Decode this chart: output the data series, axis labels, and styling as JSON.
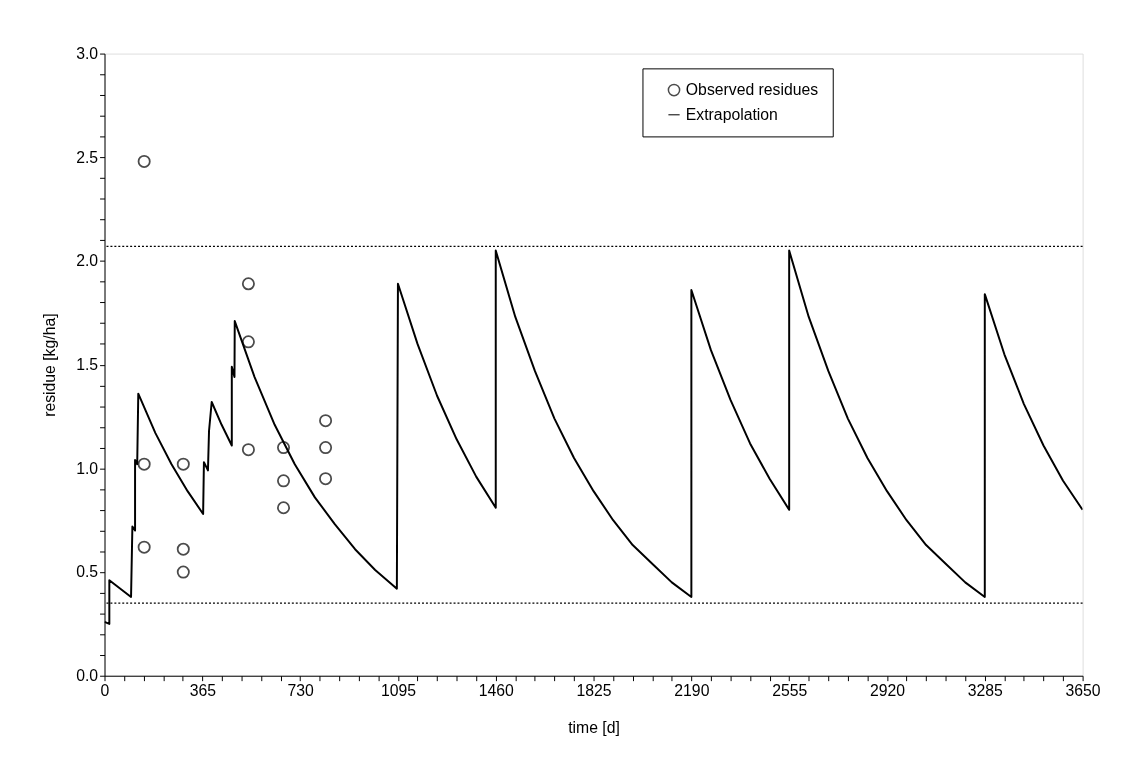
{
  "chart_data": {
    "type": "scatter",
    "xlabel": "time [d]",
    "ylabel": "residue [kg/ha]",
    "xlim": [
      0,
      3650
    ],
    "ylim": [
      0,
      3.0
    ],
    "xticks": [
      0,
      {
        "value": 73,
        "label": null
      },
      {
        "value": 146,
        "label": null
      },
      {
        "value": 219,
        "label": null
      },
      {
        "value": 292,
        "label": null
      },
      365,
      {
        "value": 438,
        "label": null
      },
      {
        "value": 511,
        "label": null
      },
      {
        "value": 584,
        "label": null
      },
      {
        "value": 657,
        "label": null
      },
      730,
      {
        "value": 803,
        "label": null
      },
      {
        "value": 876,
        "label": null
      },
      {
        "value": 949,
        "label": null
      },
      {
        "value": 1022,
        "label": null
      },
      1095,
      {
        "value": 1168,
        "label": null
      },
      {
        "value": 1241,
        "label": null
      },
      {
        "value": 1314,
        "label": null
      },
      {
        "value": 1387,
        "label": null
      },
      1460,
      {
        "value": 1533,
        "label": null
      },
      {
        "value": 1606,
        "label": null
      },
      {
        "value": 1679,
        "label": null
      },
      {
        "value": 1752,
        "label": null
      },
      1825,
      {
        "value": 1898,
        "label": null
      },
      {
        "value": 1971,
        "label": null
      },
      {
        "value": 2044,
        "label": null
      },
      {
        "value": 2117,
        "label": null
      },
      2190,
      {
        "value": 2263,
        "label": null
      },
      {
        "value": 2336,
        "label": null
      },
      {
        "value": 2409,
        "label": null
      },
      {
        "value": 2482,
        "label": null
      },
      2555,
      {
        "value": 2628,
        "label": null
      },
      {
        "value": 2701,
        "label": null
      },
      {
        "value": 2774,
        "label": null
      },
      {
        "value": 2847,
        "label": null
      },
      2920,
      {
        "value": 2993,
        "label": null
      },
      {
        "value": 3066,
        "label": null
      },
      {
        "value": 3139,
        "label": null
      },
      {
        "value": 3212,
        "label": null
      },
      3285,
      {
        "value": 3358,
        "label": null
      },
      {
        "value": 3431,
        "label": null
      },
      {
        "value": 3504,
        "label": null
      },
      {
        "value": 3577,
        "label": null
      },
      3650
    ],
    "yticks": [
      {
        "value": 0,
        "label": "0.0"
      },
      {
        "value": 0.1,
        "label": null
      },
      {
        "value": 0.2,
        "label": null
      },
      {
        "value": 0.3,
        "label": null
      },
      {
        "value": 0.4,
        "label": null
      },
      0.5,
      {
        "value": 0.6,
        "label": null
      },
      {
        "value": 0.7,
        "label": null
      },
      {
        "value": 0.8,
        "label": null
      },
      {
        "value": 0.9,
        "label": null
      },
      {
        "value": 1,
        "label": "1.0"
      },
      {
        "value": 1.1,
        "label": null
      },
      {
        "value": 1.2,
        "label": null
      },
      {
        "value": 1.3,
        "label": null
      },
      {
        "value": 1.4,
        "label": null
      },
      1.5,
      {
        "value": 1.6,
        "label": null
      },
      {
        "value": 1.7,
        "label": null
      },
      {
        "value": 1.8,
        "label": null
      },
      {
        "value": 1.9,
        "label": null
      },
      {
        "value": 2,
        "label": "2.0"
      },
      {
        "value": 2.1,
        "label": null
      },
      {
        "value": 2.2,
        "label": null
      },
      {
        "value": 2.3,
        "label": null
      },
      {
        "value": 2.4,
        "label": null
      },
      2.5,
      {
        "value": 2.6,
        "label": null
      },
      {
        "value": 2.7,
        "label": null
      },
      {
        "value": 2.8,
        "label": null
      },
      {
        "value": 2.9,
        "label": null
      },
      {
        "value": 3,
        "label": "3.0"
      }
    ],
    "grid": false,
    "legend": "top right",
    "ref_lines": [
      {
        "axis": "y",
        "value": 2.07,
        "label": null,
        "color": "#000000",
        "line_style": "dotted"
      },
      {
        "axis": "y",
        "value": 0.35,
        "label": null,
        "color": "#000000",
        "line_style": "dotted"
      }
    ],
    "series": [
      {
        "name": "Observed residues",
        "type": "scatter",
        "marker": "circle",
        "color": "#000000",
        "x": [
          148,
          148,
          148,
          294,
          294,
          294,
          537,
          537,
          537,
          668,
          668,
          668,
          825,
          825,
          825
        ],
        "values": [
          2.48,
          1.02,
          0.62,
          1.02,
          0.61,
          0.5,
          1.89,
          1.61,
          1.09,
          1.1,
          0.94,
          0.81,
          1.23,
          1.1,
          0.95
        ]
      },
      {
        "name": "Extrapolation",
        "type": "line",
        "line_style": "solid",
        "color": "#000000",
        "x": [
          0,
          18,
          18,
          99,
          104,
          114,
          114,
          122,
          126,
          190,
          250,
          310,
          368,
          371,
          386,
          390,
          400,
          437,
          475,
          475,
          485,
          486,
          560,
          635,
          710,
          785,
          860,
          935,
          1010,
          1091,
          1095,
          1168,
          1241,
          1314,
          1387,
          1460,
          1460,
          1533,
          1606,
          1679,
          1752,
          1825,
          1898,
          1971,
          2044,
          2117,
          2190,
          2190,
          2263,
          2336,
          2409,
          2482,
          2555,
          2555,
          2628,
          2701,
          2774,
          2847,
          2920,
          2993,
          3066,
          3139,
          3212,
          3285,
          3285,
          3358,
          3431,
          3504,
          3577,
          3650
        ],
        "values": [
          0.26,
          0.25,
          0.46,
          0.38,
          0.72,
          0.7,
          1.04,
          1.02,
          1.36,
          1.17,
          1.02,
          0.89,
          0.78,
          1.03,
          0.99,
          1.18,
          1.32,
          1.21,
          1.11,
          1.49,
          1.44,
          1.71,
          1.44,
          1.21,
          1.02,
          0.86,
          0.73,
          0.61,
          0.51,
          0.42,
          1.89,
          1.6,
          1.35,
          1.14,
          0.96,
          0.81,
          2.05,
          1.73,
          1.47,
          1.24,
          1.05,
          0.89,
          0.75,
          0.63,
          0.54,
          0.45,
          0.38,
          1.86,
          1.57,
          1.33,
          1.12,
          0.95,
          0.8,
          2.05,
          1.73,
          1.47,
          1.24,
          1.05,
          0.89,
          0.75,
          0.63,
          0.54,
          0.45,
          0.38,
          1.84,
          1.55,
          1.31,
          1.11,
          0.94,
          0.8
        ]
      }
    ]
  }
}
